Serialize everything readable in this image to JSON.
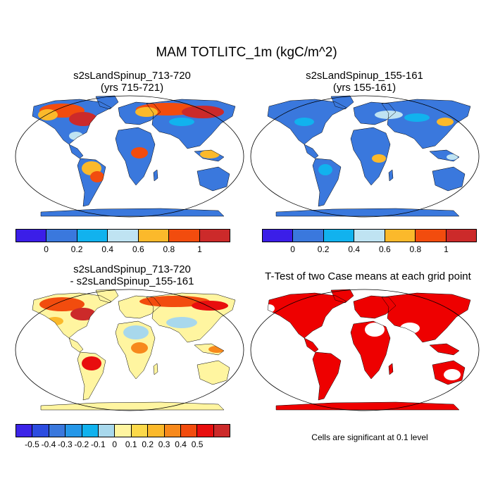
{
  "title": "MAM TOTLITC_1m (kgC/m^2)",
  "panels": [
    {
      "title": "s2sLandSpinup_713-720\n(yrs 715-721)"
    },
    {
      "title": "s2sLandSpinup_155-161\n(yrs 155-161)"
    },
    {
      "title": "s2sLandSpinup_713-720\n- s2sLandSpinup_155-161"
    },
    {
      "title": "T-Test of two Case means at each grid point"
    }
  ],
  "colorbar_abs": {
    "colors": [
      "#3b1ee8",
      "#3a78dd",
      "#11b2ee",
      "#bfe3f2",
      "#fbb92b",
      "#f24c0e",
      "#cc2a2a"
    ],
    "labels": [
      "0",
      "0.2",
      "0.4",
      "0.6",
      "0.8",
      "1"
    ]
  },
  "colorbar_diff": {
    "colors": [
      "#3c24e8",
      "#2c4ce0",
      "#3a78dd",
      "#2597e8",
      "#11b2ee",
      "#a8d8ec",
      "#fff5a0",
      "#fcd94a",
      "#fbb92b",
      "#f7891c",
      "#f24c0e",
      "#e80e0e",
      "#cc2a2a"
    ],
    "labels": [
      "-0.5",
      "-0.4",
      "-0.3",
      "-0.2",
      "-0.1",
      "0",
      "0.1",
      "0.2",
      "0.3",
      "0.4",
      "0.5"
    ]
  },
  "significance_note": "Cells are significant at 0.1 level",
  "colors": {
    "ocean": "#ffffff",
    "sig": "#ee0000",
    "base_low": "#3a78dd",
    "diff_base": "#fff5a0"
  }
}
